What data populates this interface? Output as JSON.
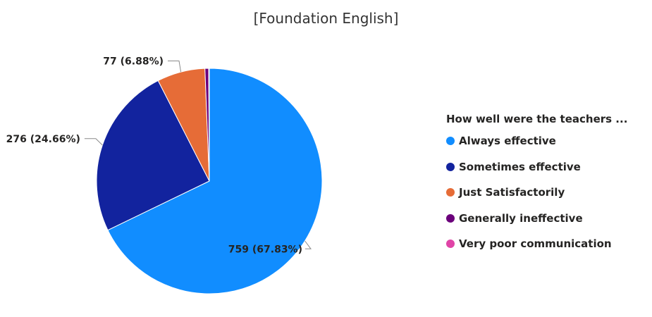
{
  "chart_data": {
    "type": "pie",
    "title": "[Foundation English]",
    "legend_title": "How well were the teachers ...",
    "legend_position": "right",
    "slices": [
      {
        "label": "Always effective",
        "value": 759,
        "percent": "67.83%",
        "display": "759 (67.83%)",
        "color": "#118DFF"
      },
      {
        "label": "Sometimes effective",
        "value": 276,
        "percent": "24.66%",
        "display": "276 (24.66%)",
        "color": "#12239E"
      },
      {
        "label": "Just Satisfactorily",
        "value": 77,
        "percent": "6.88%",
        "display": "77 (6.88%)",
        "color": "#E66C37"
      },
      {
        "label": "Generally ineffective",
        "value": 6,
        "percent": "",
        "display": "",
        "color": "#6B007B"
      },
      {
        "label": "Very poor communication",
        "value": 1,
        "percent": "",
        "display": "",
        "color": "#E044A7"
      }
    ]
  }
}
